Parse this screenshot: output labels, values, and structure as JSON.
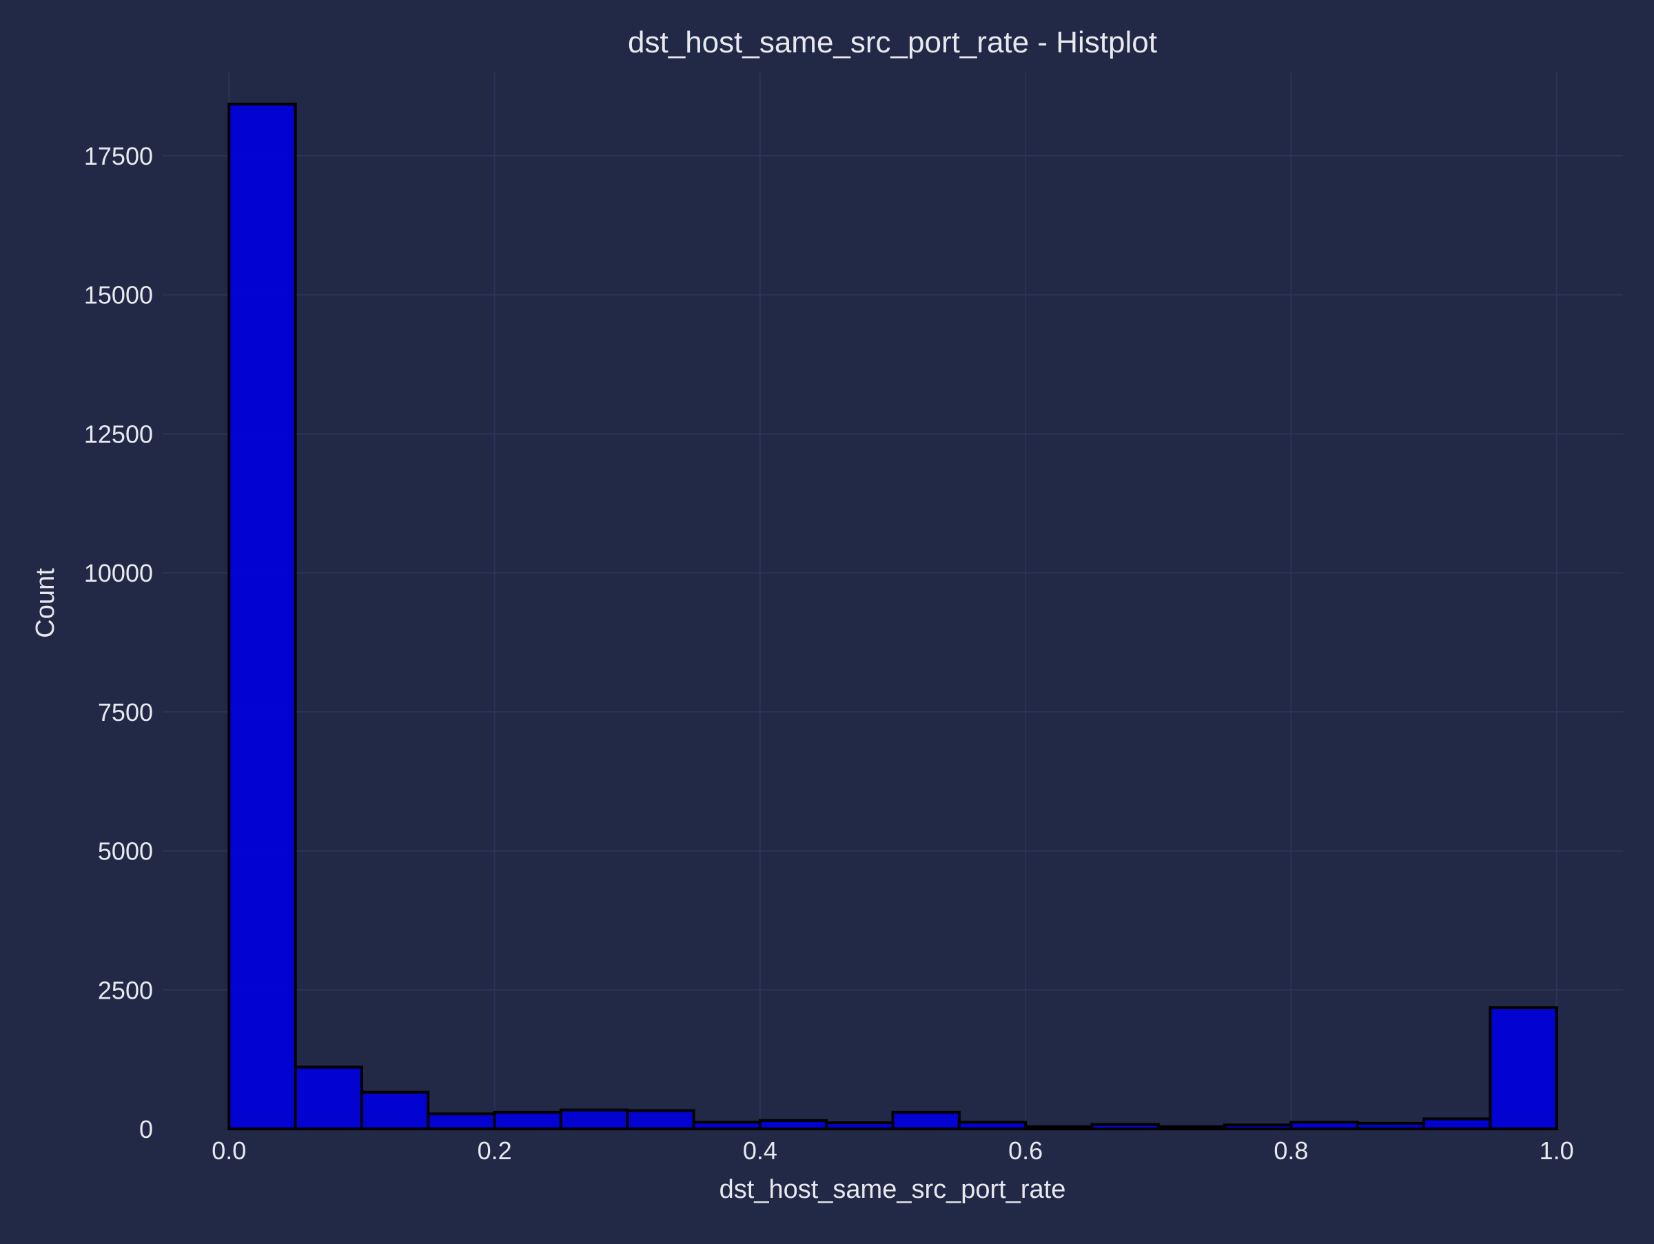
{
  "colors": {
    "background": "#212946",
    "grid": "#2A3459",
    "bar_fill": "#0000dd",
    "bar_edge": "#000000",
    "text": "#e8e8ee"
  },
  "chart_data": {
    "type": "bar",
    "title": "dst_host_same_src_port_rate - Histplot",
    "xlabel": "dst_host_same_src_port_rate",
    "ylabel": "Count",
    "xlim": [
      -0.05,
      1.05
    ],
    "ylim": [
      0,
      19000
    ],
    "xticks": [
      0.0,
      0.2,
      0.4,
      0.6,
      0.8,
      1.0
    ],
    "xtick_labels": [
      "0.0",
      "0.2",
      "0.4",
      "0.6",
      "0.8",
      "1.0"
    ],
    "yticks": [
      0,
      2500,
      5000,
      7500,
      10000,
      12500,
      15000,
      17500
    ],
    "ytick_labels": [
      "0",
      "2500",
      "5000",
      "7500",
      "10000",
      "12500",
      "15000",
      "17500"
    ],
    "grid": true,
    "bin_edges": [
      0.0,
      0.05,
      0.1,
      0.15,
      0.2,
      0.25,
      0.3,
      0.35,
      0.4,
      0.45,
      0.5,
      0.55,
      0.6,
      0.65,
      0.7,
      0.75,
      0.8,
      0.85,
      0.9,
      0.95,
      1.0
    ],
    "values": [
      18430,
      1110,
      660,
      270,
      300,
      340,
      330,
      120,
      150,
      110,
      300,
      120,
      40,
      80,
      40,
      70,
      120,
      100,
      180,
      2180
    ]
  }
}
